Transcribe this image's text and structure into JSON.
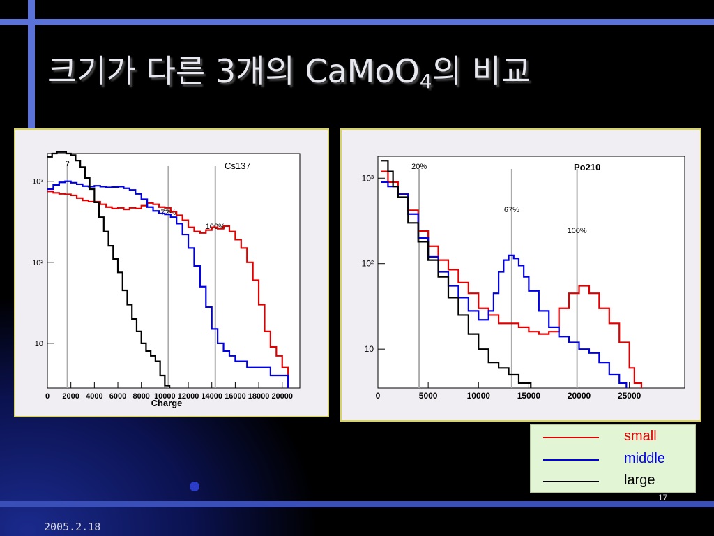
{
  "slide": {
    "title_prefix": "크기가 다른 3개의 CaMoO",
    "title_sub": "4",
    "title_suffix": "의 비교",
    "date": "2005.2.18",
    "page_number": "17"
  },
  "colors": {
    "small": "#e00000",
    "middle": "#0000e0",
    "large": "#000000",
    "marker": "#aaaaaa"
  },
  "legend": [
    {
      "label": "small",
      "color": "#e00000"
    },
    {
      "label": "middle",
      "color": "#0000e0"
    },
    {
      "label": "large",
      "color": "#000000"
    }
  ],
  "chart_data": [
    {
      "type": "line",
      "title": "Cs137",
      "xlabel": "Charge",
      "ylabel": "",
      "xlim": [
        0,
        21500
      ],
      "ylim": [
        2.8,
        2200
      ],
      "log_y": true,
      "x_ticks": [
        "0",
        "2000",
        "4000",
        "6000",
        "8000",
        "10000",
        "12000",
        "14000",
        "16000",
        "18000",
        "20000"
      ],
      "x_tick_values": [
        0,
        2000,
        4000,
        6000,
        8000,
        10000,
        12000,
        14000,
        16000,
        18000,
        20000
      ],
      "y_ticks": [
        "10",
        "10²",
        "10³"
      ],
      "y_tick_values": [
        10,
        100,
        1000
      ],
      "markers": [
        {
          "x": 1700,
          "label": "?"
        },
        {
          "x": 10300,
          "label": "72%"
        },
        {
          "x": 14300,
          "label": "100%"
        }
      ],
      "series": [
        {
          "name": "small",
          "x": [
            0,
            500,
            1000,
            1500,
            2000,
            2500,
            3000,
            3500,
            4000,
            4500,
            5000,
            5500,
            6000,
            6500,
            7000,
            7500,
            8000,
            8500,
            9000,
            9500,
            10000,
            10500,
            11000,
            11500,
            12000,
            12500,
            13000,
            13500,
            14000,
            14500,
            15000,
            15500,
            16000,
            16500,
            17000,
            17500,
            18000,
            18500,
            19000,
            19500,
            20000
          ],
          "y": [
            750,
            720,
            700,
            690,
            670,
            620,
            580,
            560,
            560,
            520,
            480,
            460,
            470,
            450,
            470,
            460,
            500,
            540,
            520,
            480,
            470,
            420,
            380,
            330,
            270,
            240,
            230,
            250,
            270,
            260,
            280,
            240,
            190,
            150,
            100,
            60,
            30,
            14,
            9,
            7,
            5
          ]
        },
        {
          "name": "middle",
          "x": [
            0,
            500,
            1000,
            1500,
            2000,
            2500,
            3000,
            3500,
            4000,
            4500,
            5000,
            5500,
            6000,
            6500,
            7000,
            7500,
            8000,
            8500,
            9000,
            9500,
            10000,
            10500,
            11000,
            11500,
            12000,
            12500,
            13000,
            13500,
            14000,
            14500,
            15000,
            15500,
            16000,
            16500,
            17000,
            17500,
            18000,
            18500,
            19000,
            19500,
            20000
          ],
          "y": [
            800,
            900,
            970,
            1000,
            960,
            920,
            870,
            860,
            880,
            860,
            840,
            850,
            860,
            820,
            780,
            700,
            600,
            480,
            430,
            400,
            390,
            360,
            300,
            220,
            150,
            90,
            50,
            28,
            15,
            10,
            8,
            7,
            6,
            6,
            5,
            5,
            5,
            5,
            4,
            4,
            4
          ]
        },
        {
          "name": "large",
          "x": [
            0,
            400,
            800,
            1200,
            1600,
            2000,
            2400,
            2800,
            3200,
            3600,
            4000,
            4400,
            4800,
            5200,
            5600,
            6000,
            6400,
            6800,
            7200,
            7600,
            8000,
            8400,
            8800,
            9200,
            9600,
            10000
          ],
          "y": [
            2000,
            2200,
            2300,
            2300,
            2200,
            2100,
            1800,
            1500,
            1100,
            800,
            550,
            360,
            240,
            160,
            110,
            75,
            45,
            30,
            20,
            14,
            10,
            8,
            7,
            6,
            4,
            3
          ]
        }
      ]
    },
    {
      "type": "line",
      "title": "Po210",
      "xlabel": "",
      "ylabel": "",
      "xlim": [
        0,
        30500
      ],
      "ylim": [
        3.5,
        1800
      ],
      "log_y": true,
      "x_ticks": [
        "0",
        "5000",
        "10000",
        "15000",
        "20000",
        "25000"
      ],
      "x_tick_values": [
        0,
        5000,
        10000,
        15000,
        20000,
        25000
      ],
      "y_ticks": [
        "10",
        "10²",
        "10³"
      ],
      "y_tick_values": [
        10,
        100,
        1000
      ],
      "markers": [
        {
          "x": 4100,
          "label": "20%"
        },
        {
          "x": 13300,
          "label": "67%"
        },
        {
          "x": 19800,
          "label": "100%"
        }
      ],
      "series": [
        {
          "name": "small",
          "x": [
            300,
            1000,
            2000,
            3000,
            4000,
            5000,
            6000,
            7000,
            8000,
            9000,
            10000,
            11000,
            12000,
            13000,
            14000,
            15000,
            16000,
            17000,
            18000,
            19000,
            20000,
            21000,
            22000,
            23000,
            24000,
            25000,
            25500
          ],
          "y": [
            1200,
            900,
            650,
            420,
            240,
            160,
            110,
            85,
            60,
            45,
            30,
            25,
            20,
            20,
            18,
            16,
            15,
            16,
            30,
            45,
            55,
            45,
            30,
            20,
            12,
            6,
            4
          ]
        },
        {
          "name": "middle",
          "x": [
            300,
            1000,
            2000,
            3000,
            4000,
            5000,
            6000,
            7000,
            8000,
            9000,
            10000,
            11000,
            11500,
            12000,
            12500,
            13000,
            13500,
            14000,
            14500,
            15000,
            16000,
            17000,
            18000,
            19000,
            20000,
            21000,
            22000,
            23000,
            24000
          ],
          "y": [
            900,
            800,
            650,
            380,
            200,
            120,
            80,
            55,
            40,
            28,
            22,
            28,
            45,
            80,
            110,
            125,
            115,
            95,
            70,
            48,
            28,
            18,
            14,
            12,
            10,
            9,
            7,
            5,
            4
          ]
        },
        {
          "name": "large",
          "x": [
            300,
            1000,
            1500,
            2000,
            3000,
            4000,
            5000,
            6000,
            7000,
            8000,
            9000,
            10000,
            11000,
            12000,
            13000,
            14000,
            14500
          ],
          "y": [
            1600,
            1200,
            800,
            600,
            300,
            180,
            110,
            70,
            40,
            25,
            15,
            10,
            7,
            6,
            5,
            4,
            4
          ]
        }
      ]
    }
  ]
}
